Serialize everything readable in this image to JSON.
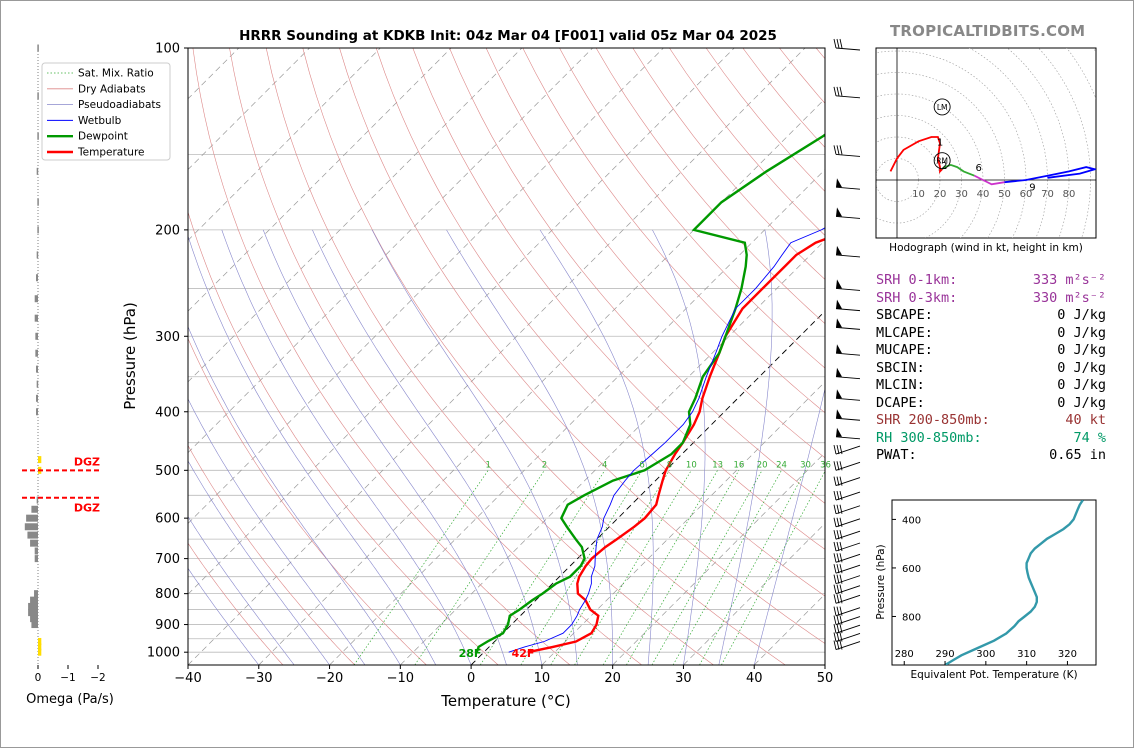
{
  "brand": "TROPICALTIDBITS.COM",
  "chart_data": [
    {
      "type": "line",
      "title": "HRRR Sounding at KDKB Init: 04z Mar 04 [F001] valid 05z Mar 04 2025",
      "xlabel": "Temperature (°C)",
      "ylabel": "Pressure (hPa)",
      "xlim": [
        -40,
        50
      ],
      "ylim": [
        1050,
        100
      ],
      "y_scale": "log",
      "x_ticks": [
        "−40",
        "−30",
        "−20",
        "−10",
        "0",
        "10",
        "20",
        "30",
        "40",
        "50"
      ],
      "y_ticks": [
        "100",
        "200",
        "300",
        "400",
        "500",
        "600",
        "700",
        "800",
        "900",
        "1000"
      ],
      "legend_position": "upper-left",
      "legend": [
        "Sat. Mix. Ratio",
        "Dry Adiabats",
        "Pseudoadiabats",
        "Wetbulb",
        "Dewpoint",
        "Temperature"
      ],
      "mixing_ratio_labels": [
        "1",
        "2",
        "4",
        "6",
        "8",
        "10",
        "13",
        "16",
        "20",
        "24",
        "30",
        "36"
      ],
      "surface_labels": {
        "dewpoint": "28F",
        "temperature": "42F"
      },
      "series": [
        {
          "name": "Temperature",
          "color": "#ff0000",
          "p": [
            1000,
            980,
            960,
            930,
            900,
            870,
            850,
            820,
            800,
            770,
            750,
            720,
            700,
            670,
            650,
            620,
            600,
            570,
            550,
            520,
            500,
            470,
            450,
            420,
            400,
            380,
            350,
            320,
            300,
            270,
            250,
            230,
            220,
            210,
            200,
            180,
            160,
            140,
            120,
            100
          ],
          "t": [
            6.2,
            9,
            11.5,
            12.5,
            12,
            11,
            9,
            7,
            5,
            3.5,
            2.8,
            2.2,
            2.0,
            2.3,
            2.8,
            3.5,
            3.8,
            3.5,
            2.5,
            1,
            0,
            -1,
            -1.5,
            -2.5,
            -3.5,
            -5,
            -7,
            -9,
            -10.5,
            -12,
            -12,
            -12,
            -12,
            -11,
            -8,
            -6,
            -5,
            -4,
            -3,
            -2
          ],
          "td": []
        },
        {
          "name": "Dewpoint",
          "color": "#009900",
          "p": [
            1000,
            980,
            960,
            930,
            900,
            870,
            850,
            820,
            800,
            770,
            750,
            720,
            700,
            670,
            650,
            620,
            600,
            570,
            550,
            520,
            500,
            470,
            450,
            420,
            400,
            380,
            350,
            320,
            300,
            270,
            250,
            230,
            220,
            210,
            200,
            180,
            160,
            140,
            120,
            100
          ],
          "t": [
            -1,
            -1.5,
            -1,
            0,
            -0.5,
            -1.5,
            -1,
            -0.5,
            0,
            0.5,
            1.5,
            1.5,
            1,
            -1,
            -3,
            -6,
            -8,
            -9,
            -8,
            -6,
            -3,
            -1.5,
            -1.5,
            -3,
            -5,
            -6,
            -8,
            -9,
            -10.5,
            -13,
            -15,
            -17.5,
            -19,
            -21,
            -30,
            -30,
            -28,
            -25,
            -23,
            -20
          ],
          "td": []
        },
        {
          "name": "Wetbulb",
          "color": "#0000ff",
          "p": [
            1000,
            980,
            960,
            930,
            900,
            870,
            850,
            820,
            800,
            770,
            750,
            720,
            700,
            670,
            650,
            620,
            600,
            570,
            550,
            520,
            500,
            470,
            450,
            420,
            400,
            380,
            350,
            320,
            300,
            270,
            250,
            230,
            220,
            210,
            200,
            180,
            160,
            140,
            120,
            100
          ],
          "t": [
            3.5,
            5,
            7,
            8.5,
            8.5,
            8,
            7.5,
            7,
            6.5,
            5.5,
            4.5,
            3.5,
            2.5,
            1,
            0,
            -1,
            -2,
            -3,
            -3.8,
            -4.3,
            -4.5,
            -4.2,
            -4,
            -4,
            -4.5,
            -5.5,
            -7.5,
            -9.5,
            -11,
            -13,
            -13,
            -13.5,
            -14,
            -14.5,
            -12,
            -9,
            -7,
            -5.5,
            -4,
            -2.5
          ],
          "td": []
        }
      ]
    },
    {
      "type": "line",
      "title": "Hodograph (wind in kt, height in km)",
      "rings": [
        "10",
        "20",
        "30",
        "40",
        "50",
        "60",
        "70",
        "80"
      ],
      "height_labels": [
        "1",
        "2",
        "6",
        "9"
      ],
      "markers": [
        "LM",
        "RM"
      ],
      "segments": [
        {
          "name": "0-1km",
          "color": "#ff0000",
          "u": [
            -3,
            0,
            3,
            10,
            16,
            19,
            20
          ],
          "v": [
            4,
            10,
            14,
            18,
            20,
            20,
            17
          ]
        },
        {
          "name": "1-3km",
          "color": "#ff0000",
          "u": [
            20,
            19,
            20,
            20,
            21
          ],
          "v": [
            17,
            10,
            6,
            4,
            5
          ]
        },
        {
          "name": "3-6km",
          "color": "#33aa33",
          "u": [
            21,
            22,
            25,
            28,
            31,
            36
          ],
          "v": [
            5,
            6,
            7,
            6,
            4,
            2
          ]
        },
        {
          "name": "6-9km",
          "color": "#cc33cc",
          "u": [
            36,
            40,
            44,
            50
          ],
          "v": [
            2,
            0,
            -2,
            -1
          ]
        },
        {
          "name": "9+km",
          "color": "#0000ff",
          "u": [
            50,
            60,
            70,
            80,
            88,
            92,
            85,
            70
          ],
          "v": [
            -1,
            0,
            2,
            4,
            6,
            5,
            3,
            1
          ]
        }
      ]
    },
    {
      "type": "line",
      "title": "",
      "xlabel": "Equivalent Pot. Temperature (K)",
      "ylabel": "Pressure (hPa)",
      "xlim": [
        277,
        327
      ],
      "ylim": [
        1000,
        320
      ],
      "x_ticks": [
        "280",
        "290",
        "300",
        "310",
        "320"
      ],
      "y_ticks": [
        "400",
        "600",
        "800"
      ],
      "series": [
        {
          "name": "",
          "color": "#3399aa",
          "p": [
            1000,
            990,
            980,
            960,
            930,
            900,
            870,
            840,
            820,
            800,
            780,
            760,
            740,
            720,
            700,
            680,
            660,
            640,
            620,
            600,
            580,
            560,
            540,
            520,
            500,
            480,
            460,
            440,
            420,
            400,
            380,
            360,
            340,
            320
          ],
          "theta": [
            290,
            291,
            292,
            294,
            298,
            302,
            305,
            307,
            308,
            309.5,
            311,
            312,
            312.5,
            312.5,
            312,
            311.5,
            311,
            310.5,
            310.2,
            310,
            310,
            310.5,
            311,
            312,
            313.5,
            315,
            317,
            319,
            320.5,
            321.5,
            322,
            322.5,
            323,
            323.8
          ]
        }
      ]
    },
    {
      "type": "bar",
      "xlabel": "Omega (Pa/s)",
      "x_ticks": [
        "0",
        "−1",
        "−2"
      ],
      "dgz_label": "DGZ",
      "levels": [
        1000,
        980,
        960,
        940,
        920,
        900,
        880,
        860,
        840,
        820,
        800,
        780,
        760,
        740,
        720,
        700,
        680,
        660,
        640,
        620,
        600,
        580,
        560,
        540,
        520,
        500,
        480,
        460,
        440,
        420,
        400,
        380,
        360,
        340,
        320,
        300,
        280,
        260,
        240,
        220,
        200,
        180,
        160,
        140,
        120,
        100
      ],
      "values": [
        -0.05,
        -0.05,
        -0.05,
        0,
        0,
        0.1,
        0.12,
        0.15,
        0.15,
        0.12,
        0.06,
        0,
        0,
        0,
        0,
        0.05,
        0.05,
        0.12,
        0.16,
        0.2,
        0.18,
        0.1,
        0.02,
        0,
        0,
        -0.05,
        -0.05,
        0,
        0,
        0,
        0.03,
        0.03,
        0.02,
        0.03,
        0.04,
        0.04,
        0.05,
        0.05,
        0.03,
        0.02,
        0.01,
        0.01,
        0.02,
        0.01,
        0.01,
        0.01
      ]
    }
  ],
  "stats": [
    {
      "label": "SRH 0-1km:",
      "value": "333 m²s⁻²",
      "color": "#993399"
    },
    {
      "label": "SRH 0-3km:",
      "value": "330 m²s⁻²",
      "color": "#993399"
    },
    {
      "label": "SBCAPE:",
      "value": "0 J/kg",
      "color": "#000000"
    },
    {
      "label": "MLCAPE:",
      "value": "0 J/kg",
      "color": "#000000"
    },
    {
      "label": "MUCAPE:",
      "value": "0 J/kg",
      "color": "#000000"
    },
    {
      "label": "SBCIN:",
      "value": "0 J/kg",
      "color": "#000000"
    },
    {
      "label": "MLCIN:",
      "value": "0 J/kg",
      "color": "#000000"
    },
    {
      "label": "DCAPE:",
      "value": "0 J/kg",
      "color": "#000000"
    },
    {
      "label": "SHR 200-850mb:",
      "value": "40 kt",
      "color": "#993333"
    },
    {
      "label": "RH 300-850mb:",
      "value": "74 %",
      "color": "#009966"
    },
    {
      "label": "PWAT:",
      "value": "0.65 in",
      "color": "#000000"
    }
  ]
}
